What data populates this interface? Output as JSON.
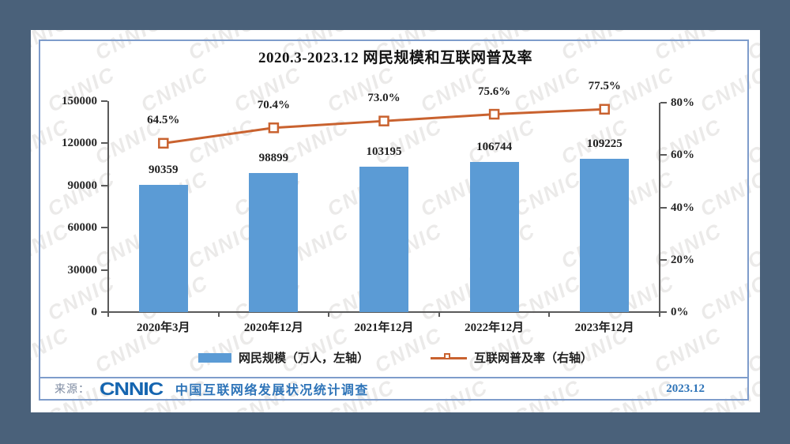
{
  "page": {
    "watermark_text": "CNNIC",
    "footer": {
      "source_label": "来源：",
      "logo_text": "CNNIC",
      "survey_name": "中国互联网络发展状况统计调查",
      "date": "2023.12"
    }
  },
  "colors": {
    "background": "#4A617A",
    "bar": "#5B9BD5",
    "line": "#C9622F",
    "axis": "#5a5a5a",
    "frame_border": "#7E9CCB",
    "footer_blue": "#2E74B8"
  },
  "chart_data": {
    "type": "bar+line",
    "title": "2020.3-2023.12 网民规模和互联网普及率",
    "categories": [
      "2020年3月",
      "2020年12月",
      "2021年12月",
      "2022年12月",
      "2023年12月"
    ],
    "series": [
      {
        "name": "网民规模（万人，左轴）",
        "type": "bar",
        "axis": "left",
        "values": [
          90359,
          98899,
          103195,
          106744,
          109225
        ],
        "data_labels": [
          "90359",
          "98899",
          "103195",
          "106744",
          "109225"
        ],
        "color": "#5B9BD5"
      },
      {
        "name": "互联网普及率（右轴）",
        "type": "line",
        "axis": "right",
        "values": [
          64.5,
          70.4,
          73.0,
          75.6,
          77.5
        ],
        "data_labels": [
          "64.5%",
          "70.4%",
          "73.0%",
          "75.6%",
          "77.5%"
        ],
        "color": "#C9622F"
      }
    ],
    "left_axis": {
      "max": 150000,
      "tick_values": [
        0,
        30000,
        60000,
        90000,
        120000,
        150000
      ],
      "tick_labels": [
        "0",
        "30000",
        "60000",
        "90000",
        "120000",
        "150000"
      ]
    },
    "right_axis": {
      "max": 80,
      "tick_values": [
        0,
        20,
        40,
        60,
        80
      ],
      "tick_labels": [
        "0%",
        "20%",
        "40%",
        "60%",
        "80%"
      ]
    },
    "legend_position": "bottom",
    "grid": false
  }
}
